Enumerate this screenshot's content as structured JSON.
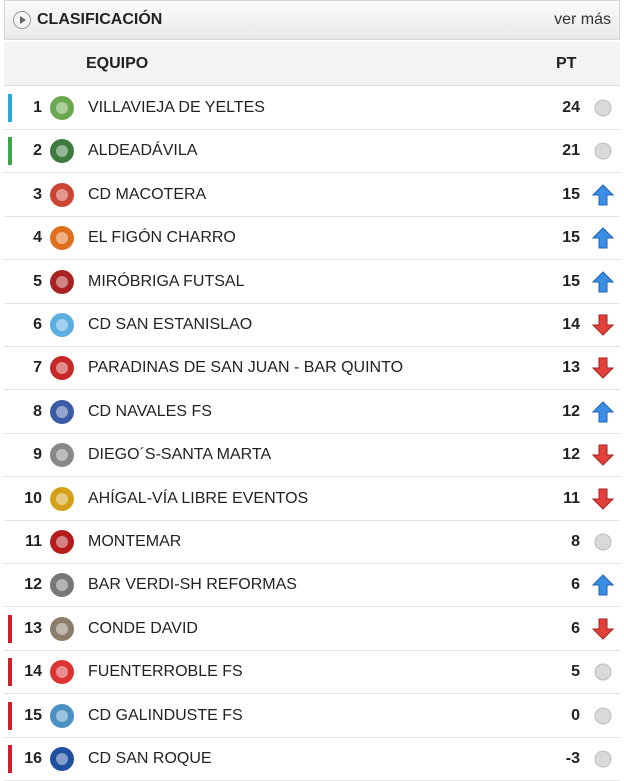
{
  "header": {
    "title": "CLASIFICACIÓN",
    "link": "ver más"
  },
  "table": {
    "columns": [
      "EQUIPO",
      "PT"
    ],
    "rows": [
      {
        "position": 1,
        "team": "VILLAVIEJA DE YELTES",
        "points": 24,
        "trend": "same",
        "marker": "#2aa7dd"
      },
      {
        "position": 2,
        "team": "ALDEADÁVILA",
        "points": 21,
        "trend": "same",
        "marker": "#3fa648"
      },
      {
        "position": 3,
        "team": "CD MACOTERA",
        "points": 15,
        "trend": "up",
        "marker": null
      },
      {
        "position": 4,
        "team": "EL FIGÓN CHARRO",
        "points": 15,
        "trend": "up",
        "marker": null
      },
      {
        "position": 5,
        "team": "MIRÓBRIGA FUTSAL",
        "points": 15,
        "trend": "up",
        "marker": null
      },
      {
        "position": 6,
        "team": "CD SAN ESTANISLAO",
        "points": 14,
        "trend": "down",
        "marker": null
      },
      {
        "position": 7,
        "team": "PARADINAS DE SAN JUAN - BAR QUINTO",
        "points": 13,
        "trend": "down",
        "marker": null
      },
      {
        "position": 8,
        "team": "CD NAVALES FS",
        "points": 12,
        "trend": "up",
        "marker": null
      },
      {
        "position": 9,
        "team": "DIEGO´S-SANTA MARTA",
        "points": 12,
        "trend": "down",
        "marker": null
      },
      {
        "position": 10,
        "team": "AHÍGAL-VÍA LIBRE EVENTOS",
        "points": 11,
        "trend": "down",
        "marker": null
      },
      {
        "position": 11,
        "team": "MONTEMAR",
        "points": 8,
        "trend": "same",
        "marker": null
      },
      {
        "position": 12,
        "team": "BAR VERDI-SH REFORMAS",
        "points": 6,
        "trend": "up",
        "marker": null
      },
      {
        "position": 13,
        "team": "CONDE DAVID",
        "points": 6,
        "trend": "down",
        "marker": "#d0202e"
      },
      {
        "position": 14,
        "team": "FUENTERROBLE FS",
        "points": 5,
        "trend": "same",
        "marker": "#d0202e"
      },
      {
        "position": 15,
        "team": "CD GALINDUSTE FS",
        "points": 0,
        "trend": "same",
        "marker": "#d0202e"
      },
      {
        "position": 16,
        "team": "CD SAN ROQUE",
        "points": -3,
        "trend": "same",
        "marker": "#d0202e"
      }
    ]
  }
}
